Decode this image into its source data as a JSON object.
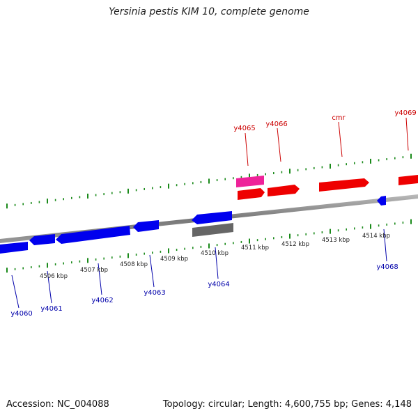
{
  "title": "Yersinia pestis KIM 10, complete genome",
  "footer": {
    "accession": "Accession: NC_004088",
    "topology": "Topology: circular; Length: 4,600,755 bp; Genes: 4,148"
  },
  "colors": {
    "forward_gene": "#ee0000",
    "forward_label": "#cc0000",
    "reverse_gene": "#0000ee",
    "reverse_label": "#0000aa",
    "rna_gene": "#ee2299",
    "other_gene": "#666666",
    "backbone": "#888888",
    "ticks": "#1a8a1a"
  },
  "forward_labels": [
    "y4065",
    "y4066",
    "cmr",
    "y4069"
  ],
  "reverse_labels": [
    "y4060",
    "y4061",
    "y4062",
    "y4063",
    "y4064",
    "y4068"
  ],
  "kbp_labels": [
    "4506 kbp",
    "4507 kbp",
    "4508 kbp",
    "4509 kbp",
    "4510 kbp",
    "4511 kbp",
    "4512 kbp",
    "4513 kbp",
    "4514 kbp"
  ]
}
